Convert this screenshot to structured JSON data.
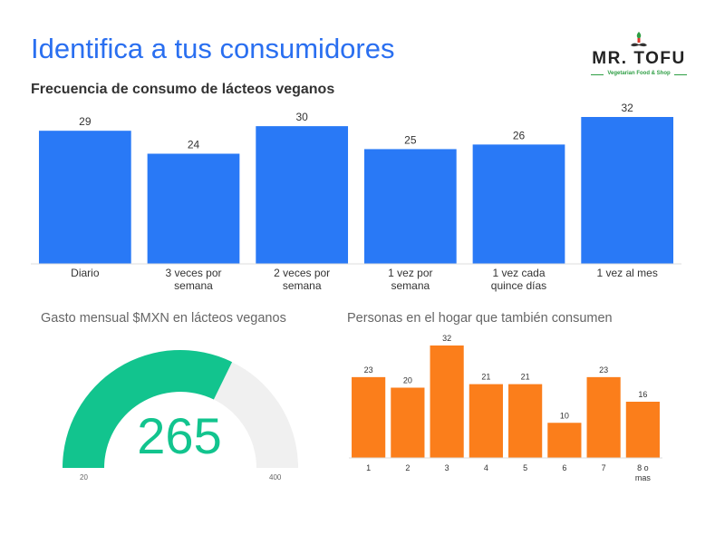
{
  "header": {
    "title": "Identifica a tus consumidores"
  },
  "logo": {
    "name": "MR. TOFU",
    "tagline": "Vegetarian Food & Shop"
  },
  "colors": {
    "title": "#2a6ff0",
    "bar_blue": "#2979f6",
    "bar_orange": "#fb7e1b",
    "gauge_fill": "#12c48e",
    "gauge_track": "#f0f0f0"
  },
  "chart_data": [
    {
      "type": "bar",
      "title": "Frecuencia de consumo de lácteos veganos",
      "categories": [
        "Diario",
        "3 veces por semana",
        "2 veces por semana",
        "1 vez por semana",
        "1 vez cada quince días",
        "1 vez al mes"
      ],
      "category_lines": [
        [
          "Diario"
        ],
        [
          "3 veces por",
          "semana"
        ],
        [
          "2 veces por",
          "semana"
        ],
        [
          "1 vez por",
          "semana"
        ],
        [
          "1 vez cada",
          "quince días"
        ],
        [
          "1 vez al mes"
        ]
      ],
      "values": [
        29,
        24,
        30,
        25,
        26,
        32
      ],
      "ylim": [
        0,
        32
      ],
      "color": "#2979f6",
      "grid": false,
      "data_labels": true
    },
    {
      "type": "gauge",
      "title": "Gasto mensual $MXN en lácteos veganos",
      "value": 265,
      "value_label": "265",
      "min": 20,
      "max": 400,
      "min_label": "20",
      "max_label": "400",
      "color": "#12c48e"
    },
    {
      "type": "bar",
      "title": "Personas en el hogar que también consumen",
      "categories": [
        "1",
        "2",
        "3",
        "4",
        "5",
        "6",
        "7",
        "8 o mas"
      ],
      "category_lines": [
        [
          "1"
        ],
        [
          "2"
        ],
        [
          "3"
        ],
        [
          "4"
        ],
        [
          "5"
        ],
        [
          "6"
        ],
        [
          "7"
        ],
        [
          "8 o",
          "mas"
        ]
      ],
      "values": [
        23,
        20,
        32,
        21,
        21,
        10,
        23,
        16
      ],
      "ylim": [
        0,
        32
      ],
      "color": "#fb7e1b",
      "grid": false,
      "data_labels": true
    }
  ]
}
